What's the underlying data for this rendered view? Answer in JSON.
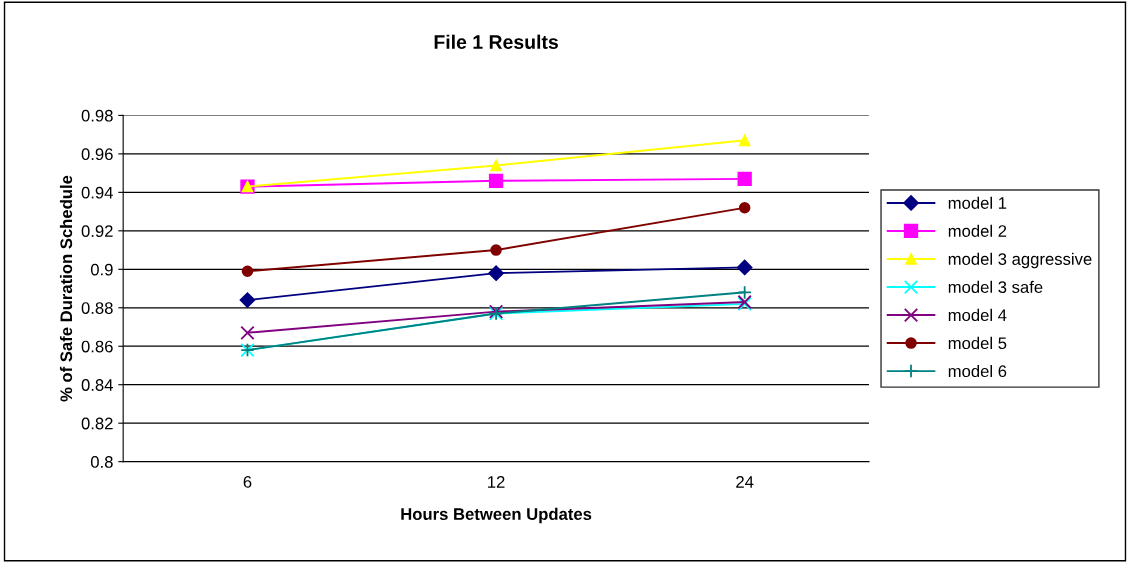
{
  "chart_data": {
    "type": "line",
    "title": "File 1 Results",
    "xlabel": "Hours Between Updates",
    "ylabel": "% of Safe Duration Schedule",
    "categories": [
      "6",
      "12",
      "24"
    ],
    "series": [
      {
        "name": "model 1",
        "color": "#000080",
        "marker": "diamond",
        "values": [
          0.884,
          0.898,
          0.901
        ]
      },
      {
        "name": "model 2",
        "color": "#ff00ff",
        "marker": "square",
        "values": [
          0.943,
          0.946,
          0.947
        ]
      },
      {
        "name": "model 3 aggressive",
        "color": "#ffff00",
        "marker": "triangle",
        "values": [
          0.943,
          0.954,
          0.967
        ]
      },
      {
        "name": "model 3 safe",
        "color": "#00ffff",
        "marker": "cross",
        "values": [
          0.858,
          0.877,
          0.882
        ]
      },
      {
        "name": "model 4",
        "color": "#800080",
        "marker": "cross",
        "values": [
          0.867,
          0.878,
          0.883
        ]
      },
      {
        "name": "model 5",
        "color": "#800000",
        "marker": "circle",
        "values": [
          0.899,
          0.91,
          0.932
        ]
      },
      {
        "name": "model 6",
        "color": "#008080",
        "marker": "plus",
        "values": [
          0.858,
          0.877,
          0.888
        ]
      }
    ],
    "ylim": [
      0.8,
      0.98
    ],
    "yticks": [
      {
        "value": 0.8,
        "label": "0.8"
      },
      0.82,
      0.84,
      0.86,
      0.88,
      {
        "value": 0.9,
        "label": "0.9"
      },
      0.92,
      0.94,
      0.96,
      0.98
    ],
    "grid": "y",
    "legend": "right"
  }
}
